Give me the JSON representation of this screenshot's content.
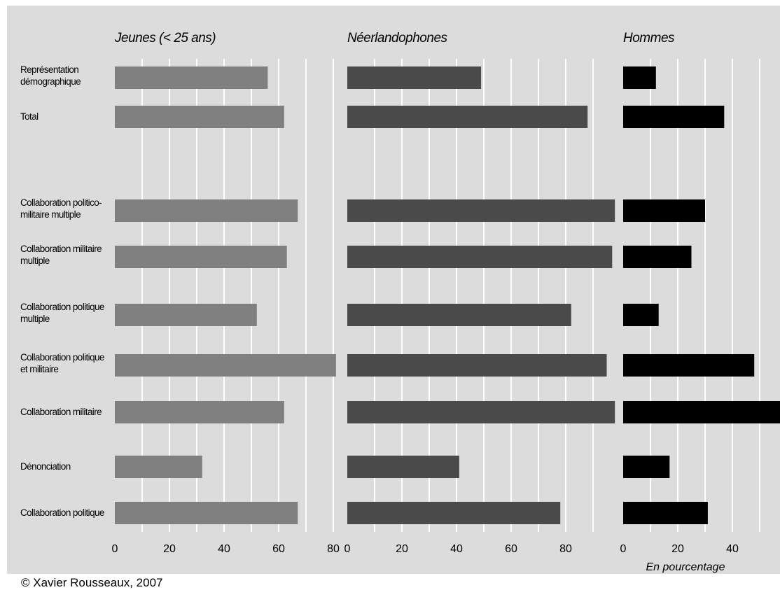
{
  "chart_data": {
    "type": "bar",
    "orientation": "horizontal",
    "categories": [
      [
        "Représentation",
        "démographique"
      ],
      [
        "Total"
      ],
      [
        "Collaboration politico-",
        "militaire multiple"
      ],
      [
        "Collaboration militaire",
        "multiple"
      ],
      [
        "Collaboration politique",
        "multiple"
      ],
      [
        "Collaboration politique",
        "et militaire"
      ],
      [
        "Collaboration militaire"
      ],
      [
        "Dénonciation"
      ],
      [
        "Collaboration politique"
      ]
    ],
    "panels": [
      {
        "title": "Jeunes (< 25 ans)",
        "color": "#808080",
        "values": [
          56,
          62,
          67,
          63,
          52,
          81,
          62,
          32,
          67
        ],
        "ticks": [
          "0",
          "20",
          "40",
          "60",
          "80"
        ],
        "xlim": [
          0,
          80
        ]
      },
      {
        "title": "Néerlandophones",
        "color": "#4a4a4a",
        "values": [
          49,
          88,
          98,
          97,
          82,
          95,
          98,
          41,
          78
        ],
        "ticks": [
          "0",
          "20",
          "40",
          "60",
          "80"
        ],
        "xlim": [
          0,
          100
        ]
      },
      {
        "title": "Hommes",
        "color": "#000000",
        "values": [
          12,
          37,
          30,
          25,
          13,
          48,
          58,
          17,
          31
        ],
        "ticks": [
          "0",
          "20",
          "40"
        ],
        "xlim": [
          0,
          57
        ]
      }
    ],
    "unit_label": "En pourcentage",
    "grid": true,
    "credit": "© Xavier Rousseaux, 2007"
  }
}
